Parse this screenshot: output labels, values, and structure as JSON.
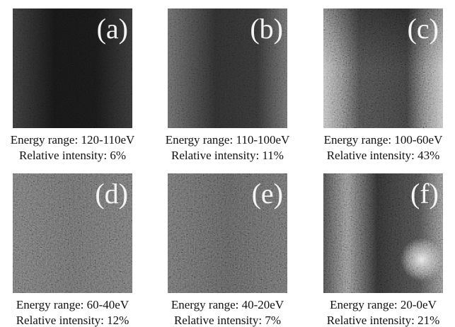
{
  "panels": [
    {
      "label": "(a)",
      "energy_range": "Energy range: 120-110eV",
      "relative_intensity": "Relative intensity: 6%"
    },
    {
      "label": "(b)",
      "energy_range": "Energy range: 110-100eV",
      "relative_intensity": "Relative intensity: 11%"
    },
    {
      "label": "(c)",
      "energy_range": "Energy range: 100-60eV",
      "relative_intensity": "Relative intensity: 43%"
    },
    {
      "label": "(d)",
      "energy_range": "Energy range: 60-40eV",
      "relative_intensity": "Relative intensity: 12%"
    },
    {
      "label": "(e)",
      "energy_range": "Energy range: 40-20eV",
      "relative_intensity": "Relative intensity: 7%"
    },
    {
      "label": "(f)",
      "energy_range": "Energy range: 20-0eV",
      "relative_intensity": "Relative intensity: 21%"
    }
  ]
}
